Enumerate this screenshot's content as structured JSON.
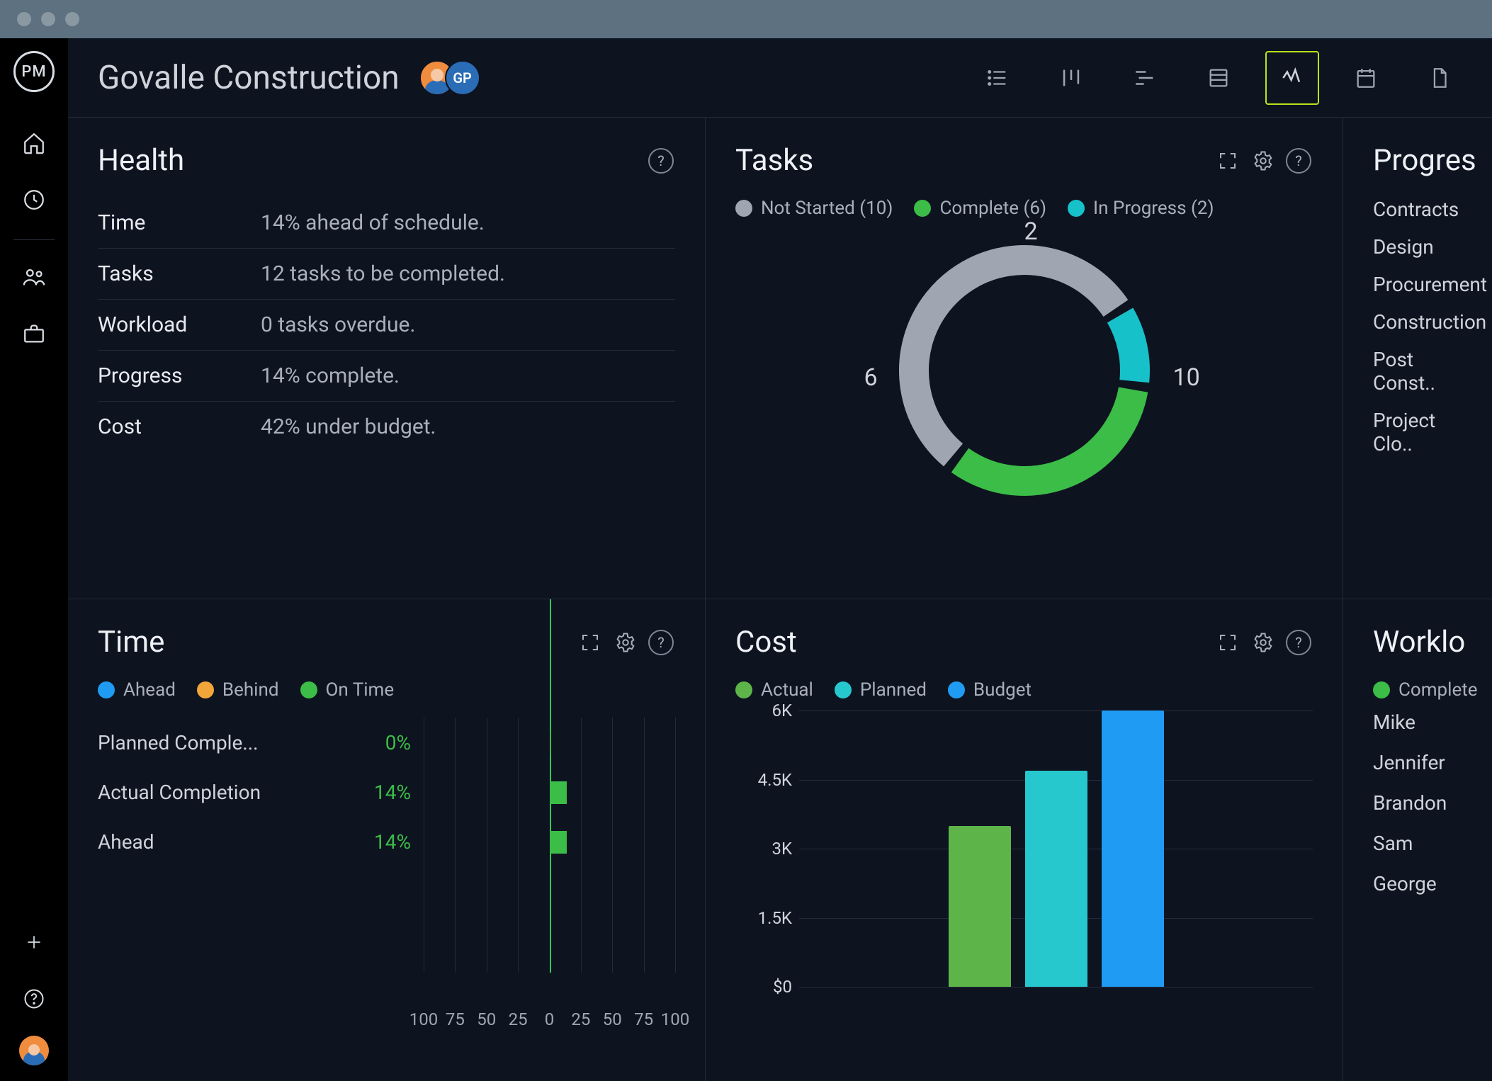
{
  "colors": {
    "bg": "#0e1320",
    "panel_border": "#242b3a",
    "text_primary": "#eef1f5",
    "text_muted": "#a9afbb",
    "accent_active": "#b8e41c",
    "green": "#3bbd47",
    "teal": "#17c1c9",
    "gray": "#9fa6b2",
    "blue": "#1f9bf3",
    "orange": "#f2a63a",
    "cost_green": "#5db54a",
    "cost_teal": "#27c7ce",
    "cost_blue": "#1f9bf3"
  },
  "header": {
    "title": "Govalle Construction",
    "avatar2_initials": "GP",
    "views": [
      {
        "name": "list-view-icon"
      },
      {
        "name": "board-view-icon"
      },
      {
        "name": "gantt-view-icon"
      },
      {
        "name": "sheet-view-icon"
      },
      {
        "name": "dashboard-view-icon",
        "active": true
      },
      {
        "name": "calendar-view-icon"
      },
      {
        "name": "files-view-icon"
      }
    ]
  },
  "health": {
    "title": "Health",
    "rows": [
      {
        "key": "Time",
        "value": "14% ahead of schedule."
      },
      {
        "key": "Tasks",
        "value": "12 tasks to be completed."
      },
      {
        "key": "Workload",
        "value": "0 tasks overdue."
      },
      {
        "key": "Progress",
        "value": "14% complete."
      },
      {
        "key": "Cost",
        "value": "42% under budget."
      }
    ]
  },
  "tasks": {
    "title": "Tasks",
    "legend": [
      {
        "label": "Not Started (10)",
        "color": "#9fa6b2",
        "count": 10
      },
      {
        "label": "Complete (6)",
        "color": "#3bbd47",
        "count": 6
      },
      {
        "label": "In Progress (2)",
        "color": "#17c1c9",
        "count": 2
      }
    ],
    "donut": {
      "total": 18,
      "stroke_width": 42,
      "segments": [
        {
          "value": 2,
          "color": "#17c1c9",
          "label": "2"
        },
        {
          "value": 6,
          "color": "#3bbd47",
          "label": "6"
        },
        {
          "value": 10,
          "color": "#9fa6b2",
          "label": "10"
        }
      ]
    }
  },
  "progress": {
    "title": "Progres",
    "phases": [
      "Contracts",
      "Design",
      "Procurement",
      "Construction",
      "Post Const..",
      "Project Clo.."
    ]
  },
  "time": {
    "title": "Time",
    "legend": [
      {
        "label": "Ahead",
        "color": "#1f9bf3"
      },
      {
        "label": "Behind",
        "color": "#f2a63a"
      },
      {
        "label": "On Time",
        "color": "#3bbd47"
      }
    ],
    "rows": [
      {
        "label": "Planned Comple...",
        "value_text": "0%",
        "value": 0,
        "color": "#3bbd47"
      },
      {
        "label": "Actual Completion",
        "value_text": "14%",
        "value": 14,
        "color": "#3bbd47"
      },
      {
        "label": "Ahead",
        "value_text": "14%",
        "value": 14,
        "color": "#3bbd47"
      }
    ],
    "axis": {
      "min": -100,
      "max": 100,
      "ticks": [
        100,
        75,
        50,
        25,
        0,
        25,
        50,
        75,
        100
      ]
    }
  },
  "cost": {
    "title": "Cost",
    "legend": [
      {
        "label": "Actual",
        "color": "#5db54a"
      },
      {
        "label": "Planned",
        "color": "#27c7ce"
      },
      {
        "label": "Budget",
        "color": "#1f9bf3"
      }
    ],
    "ylim": [
      0,
      6000
    ],
    "yticks": [
      {
        "v": 6000,
        "label": "6K"
      },
      {
        "v": 4500,
        "label": "4.5K"
      },
      {
        "v": 3000,
        "label": "3K"
      },
      {
        "v": 1500,
        "label": "1.5K"
      },
      {
        "v": 0,
        "label": "$0"
      }
    ],
    "bars": [
      {
        "value": 3500,
        "color": "#5db54a"
      },
      {
        "value": 4700,
        "color": "#27c7ce"
      },
      {
        "value": 6000,
        "color": "#1f9bf3"
      }
    ]
  },
  "workload": {
    "title": "Worklo",
    "legend": [
      {
        "label": "Complete",
        "color": "#3bbd47"
      }
    ],
    "people": [
      "Mike",
      "Jennifer",
      "Brandon",
      "Sam",
      "George"
    ]
  }
}
